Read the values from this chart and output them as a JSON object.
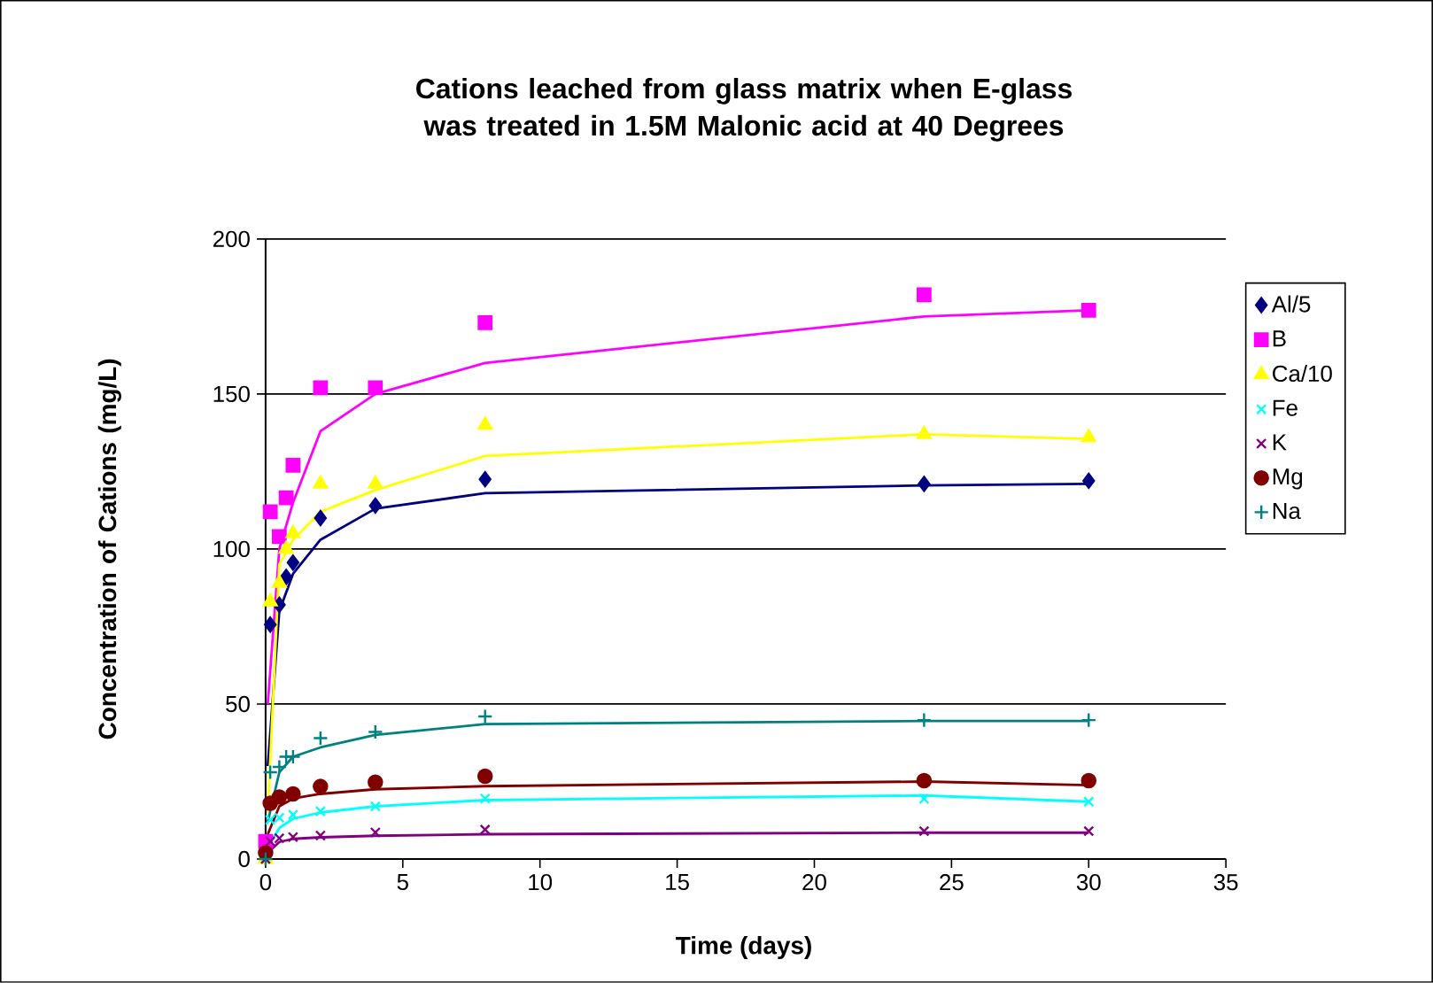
{
  "chart_data": {
    "type": "scatter",
    "title": "Cations leached from glass matrix when E-glass was treated in 1.5M Malonic acid at 40 Degrees",
    "xlabel": "Time (days)",
    "ylabel": "Concentration of Cations (mg/L)",
    "xlim": [
      0,
      35
    ],
    "xticks": [
      0,
      5,
      10,
      15,
      20,
      25,
      30,
      35
    ],
    "ylim": [
      0,
      200
    ],
    "yticks": [
      0,
      50,
      100,
      150,
      200
    ],
    "grid": "y",
    "legend": "right",
    "series": [
      {
        "name": "Al/5",
        "marker": "diamond",
        "color": "#000080",
        "x": [
          0.17,
          0.5,
          0.75,
          1,
          2,
          4,
          8,
          24,
          30
        ],
        "values": [
          75.6,
          82,
          91,
          95.6,
          110,
          114,
          122.5,
          121,
          122
        ]
      },
      {
        "name": "B",
        "marker": "square",
        "color": "#ff00ff",
        "x": [
          0,
          0.17,
          0.5,
          0.75,
          1,
          2,
          4,
          8,
          24,
          30
        ],
        "values": [
          5.7,
          112,
          104,
          116.5,
          127,
          152,
          152,
          173,
          182,
          177
        ]
      },
      {
        "name": "Ca/10",
        "marker": "triangle",
        "color": "#ffff00",
        "x": [
          0,
          0.17,
          0.5,
          0.75,
          1,
          2,
          4,
          8,
          24,
          30
        ],
        "values": [
          0,
          83,
          89,
          100,
          105,
          121,
          121,
          140,
          137,
          136
        ]
      },
      {
        "name": "Fe",
        "marker": "cross",
        "color": "#00ffff",
        "x": [
          0,
          0.17,
          0.5,
          1,
          2,
          4,
          8,
          24,
          30
        ],
        "values": [
          0,
          12.6,
          13.3,
          14.3,
          15.4,
          17,
          19.5,
          19.4,
          18.5
        ]
      },
      {
        "name": "K",
        "marker": "cross",
        "color": "#800080",
        "x": [
          0,
          0.17,
          0.5,
          1,
          2,
          4,
          8,
          24,
          30
        ],
        "values": [
          0,
          5.7,
          6.7,
          7.1,
          7.6,
          8.6,
          9.5,
          9,
          9
        ]
      },
      {
        "name": "Mg",
        "marker": "circle",
        "color": "#800000",
        "x": [
          0,
          0.17,
          0.5,
          1,
          2,
          4,
          8,
          24,
          30
        ],
        "values": [
          2,
          18,
          20,
          21,
          23.4,
          24.8,
          26.7,
          25.3,
          25.3
        ]
      },
      {
        "name": "Na",
        "marker": "plus",
        "color": "#008080",
        "x": [
          0,
          0.17,
          0.5,
          0.75,
          1,
          2,
          4,
          8,
          24,
          30
        ],
        "values": [
          0,
          28,
          29.7,
          33,
          33,
          39,
          41,
          46,
          44.8,
          44.8
        ]
      },
      {
        "type": "line",
        "color": "#000080",
        "x": [
          0.08,
          0.5,
          1,
          2,
          4,
          8,
          24,
          30
        ],
        "values": [
          30,
          80,
          92,
          103,
          113,
          118,
          120.5,
          121
        ]
      },
      {
        "type": "line",
        "color": "#ff00ff",
        "x": [
          0.08,
          0.5,
          1,
          2,
          4,
          8,
          24,
          30
        ],
        "values": [
          50,
          100,
          115,
          138,
          150,
          160,
          175,
          177
        ]
      },
      {
        "type": "line",
        "color": "#ffff00",
        "x": [
          0.08,
          0.5,
          1,
          2,
          4,
          8,
          24,
          30
        ],
        "values": [
          15,
          95,
          103,
          112,
          119,
          130,
          137,
          135.5
        ]
      },
      {
        "type": "line",
        "color": "#00ffff",
        "x": [
          0.08,
          0.5,
          1,
          2,
          4,
          8,
          24,
          30
        ],
        "values": [
          4,
          10,
          13,
          15,
          17,
          19,
          20.5,
          18.5
        ]
      },
      {
        "type": "line",
        "color": "#800080",
        "x": [
          0.08,
          0.5,
          1,
          2,
          4,
          8,
          24,
          30
        ],
        "values": [
          2,
          5.5,
          6.5,
          7,
          7.5,
          8,
          8.5,
          8.5
        ]
      },
      {
        "type": "line",
        "color": "#800000",
        "x": [
          0.08,
          0.5,
          1,
          2,
          4,
          8,
          24,
          30
        ],
        "values": [
          8,
          17,
          19.5,
          21,
          22.5,
          23.5,
          25,
          23.8
        ]
      },
      {
        "type": "line",
        "color": "#008080",
        "x": [
          0.08,
          0.5,
          1,
          2,
          4,
          8,
          24,
          30
        ],
        "values": [
          12,
          28,
          33,
          36,
          40,
          43.5,
          44.5,
          44.5
        ]
      }
    ]
  }
}
